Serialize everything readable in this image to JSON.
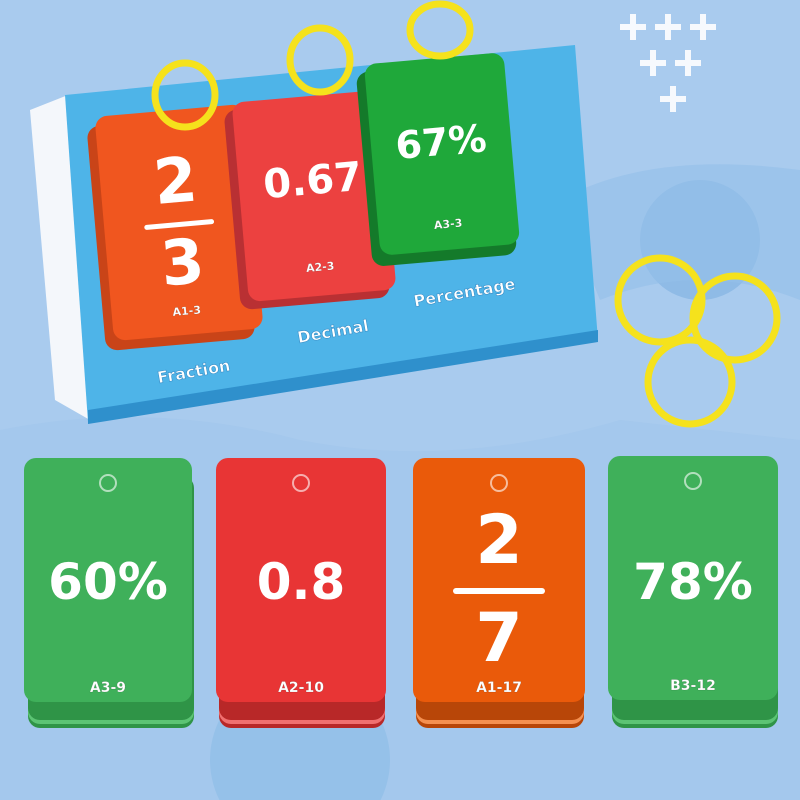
{
  "stand": {
    "labels": [
      "Fraction",
      "Decimal",
      "Percentage"
    ],
    "cards": [
      {
        "numerator": "2",
        "denominator": "3",
        "code": "A1-3",
        "color": "#f0561f"
      },
      {
        "value": "0.67",
        "code": "A2-3",
        "color": "#ec4140"
      },
      {
        "value": "67%",
        "code": "A3-3",
        "color": "#1fa83a"
      }
    ]
  },
  "cards": [
    {
      "value": "60%",
      "code": "A3-9",
      "color": "#3fb05a"
    },
    {
      "value": "0.8",
      "code": "A2-10",
      "color": "#e83535"
    },
    {
      "numerator": "2",
      "denominator": "7",
      "code": "A1-17",
      "color": "#ea5a0a"
    },
    {
      "value": "78%",
      "code": "B3-12",
      "color": "#3fb05a"
    }
  ],
  "colors": {
    "background": "#a9cbee",
    "stand": "#4eb4e8",
    "ring": "#f5e21c"
  }
}
